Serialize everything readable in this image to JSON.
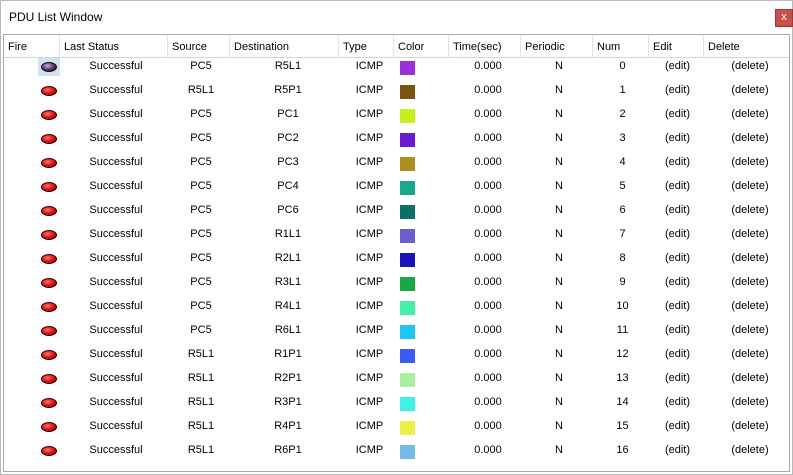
{
  "window": {
    "title": "PDU List Window",
    "close_label": "x"
  },
  "columns": [
    "Fire",
    "Last Status",
    "Source",
    "Destination",
    "Type",
    "Color",
    "Time(sec)",
    "Periodic",
    "Num",
    "Edit",
    "Delete"
  ],
  "rows": [
    {
      "status": "Successful",
      "source": "PC5",
      "dest": "R5L1",
      "type": "ICMP",
      "color": "#9b30d9",
      "time": "0.000",
      "periodic": "N",
      "num": "0",
      "edit": "(edit)",
      "del": "(delete)"
    },
    {
      "status": "Successful",
      "source": "R5L1",
      "dest": "R5P1",
      "type": "ICMP",
      "color": "#7a5510",
      "time": "0.000",
      "periodic": "N",
      "num": "1",
      "edit": "(edit)",
      "del": "(delete)"
    },
    {
      "status": "Successful",
      "source": "PC5",
      "dest": "PC1",
      "type": "ICMP",
      "color": "#c8ee1e",
      "time": "0.000",
      "periodic": "N",
      "num": "2",
      "edit": "(edit)",
      "del": "(delete)"
    },
    {
      "status": "Successful",
      "source": "PC5",
      "dest": "PC2",
      "type": "ICMP",
      "color": "#6a1ad0",
      "time": "0.000",
      "periodic": "N",
      "num": "3",
      "edit": "(edit)",
      "del": "(delete)"
    },
    {
      "status": "Successful",
      "source": "PC5",
      "dest": "PC3",
      "type": "ICMP",
      "color": "#ae8c1e",
      "time": "0.000",
      "periodic": "N",
      "num": "4",
      "edit": "(edit)",
      "del": "(delete)"
    },
    {
      "status": "Successful",
      "source": "PC5",
      "dest": "PC4",
      "type": "ICMP",
      "color": "#1ca88c",
      "time": "0.000",
      "periodic": "N",
      "num": "5",
      "edit": "(edit)",
      "del": "(delete)"
    },
    {
      "status": "Successful",
      "source": "PC5",
      "dest": "PC6",
      "type": "ICMP",
      "color": "#0c6e6a",
      "time": "0.000",
      "periodic": "N",
      "num": "6",
      "edit": "(edit)",
      "del": "(delete)"
    },
    {
      "status": "Successful",
      "source": "PC5",
      "dest": "R1L1",
      "type": "ICMP",
      "color": "#6a5fcc",
      "time": "0.000",
      "periodic": "N",
      "num": "7",
      "edit": "(edit)",
      "del": "(delete)"
    },
    {
      "status": "Successful",
      "source": "PC5",
      "dest": "R2L1",
      "type": "ICMP",
      "color": "#1a14b4",
      "time": "0.000",
      "periodic": "N",
      "num": "8",
      "edit": "(edit)",
      "del": "(delete)"
    },
    {
      "status": "Successful",
      "source": "PC5",
      "dest": "R3L1",
      "type": "ICMP",
      "color": "#18a848",
      "time": "0.000",
      "periodic": "N",
      "num": "9",
      "edit": "(edit)",
      "del": "(delete)"
    },
    {
      "status": "Successful",
      "source": "PC5",
      "dest": "R4L1",
      "type": "ICMP",
      "color": "#46f0a8",
      "time": "0.000",
      "periodic": "N",
      "num": "10",
      "edit": "(edit)",
      "del": "(delete)"
    },
    {
      "status": "Successful",
      "source": "PC5",
      "dest": "R6L1",
      "type": "ICMP",
      "color": "#1ec8ec",
      "time": "0.000",
      "periodic": "N",
      "num": "11",
      "edit": "(edit)",
      "del": "(delete)"
    },
    {
      "status": "Successful",
      "source": "R5L1",
      "dest": "R1P1",
      "type": "ICMP",
      "color": "#3a5cf0",
      "time": "0.000",
      "periodic": "N",
      "num": "12",
      "edit": "(edit)",
      "del": "(delete)"
    },
    {
      "status": "Successful",
      "source": "R5L1",
      "dest": "R2P1",
      "type": "ICMP",
      "color": "#a8f0a0",
      "time": "0.000",
      "periodic": "N",
      "num": "13",
      "edit": "(edit)",
      "del": "(delete)"
    },
    {
      "status": "Successful",
      "source": "R5L1",
      "dest": "R3P1",
      "type": "ICMP",
      "color": "#40f2e4",
      "time": "0.000",
      "periodic": "N",
      "num": "14",
      "edit": "(edit)",
      "del": "(delete)"
    },
    {
      "status": "Successful",
      "source": "R5L1",
      "dest": "R4P1",
      "type": "ICMP",
      "color": "#eef04a",
      "time": "0.000",
      "periodic": "N",
      "num": "15",
      "edit": "(edit)",
      "del": "(delete)"
    },
    {
      "status": "Successful",
      "source": "R5L1",
      "dest": "R6P1",
      "type": "ICMP",
      "color": "#74bce8",
      "time": "0.000",
      "periodic": "N",
      "num": "16",
      "edit": "(edit)",
      "del": "(delete)"
    }
  ],
  "fire_icon": "fire-button-icon",
  "selected_row": 0
}
